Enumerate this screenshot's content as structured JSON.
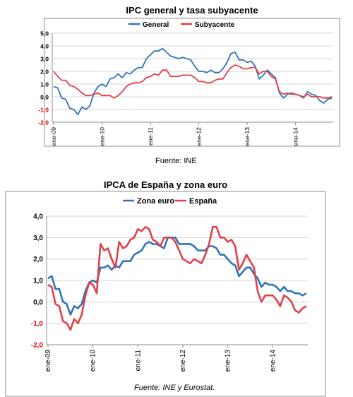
{
  "chart_data": [
    {
      "type": "line",
      "title": "IPC general y tasa subyacente",
      "xlabel": "",
      "ylabel": "",
      "ylim": [
        -2.0,
        5.0
      ],
      "yticks": [
        "5,0",
        "4,0",
        "3,0",
        "2,0",
        "1,0",
        "0,0",
        "-1,0",
        "-2,0"
      ],
      "xticks": [
        "ene-09",
        "ene-10",
        "ene-11",
        "ene-12",
        "ene-13",
        "ene-14"
      ],
      "grid": true,
      "legend": "top",
      "series": [
        {
          "name": "General",
          "color": "#2e75b6",
          "values": [
            0.8,
            0.7,
            -0.1,
            -0.2,
            -0.9,
            -1.0,
            -1.4,
            -0.8,
            -1.0,
            -0.7,
            0.3,
            0.8,
            1.0,
            0.8,
            1.4,
            1.5,
            1.8,
            1.5,
            1.9,
            1.8,
            2.1,
            2.3,
            2.3,
            3.0,
            3.3,
            3.6,
            3.6,
            3.8,
            3.5,
            3.2,
            3.1,
            3.0,
            3.1,
            3.0,
            2.9,
            2.4,
            2.0,
            2.0,
            1.9,
            2.1,
            1.9,
            1.9,
            2.2,
            2.7,
            3.4,
            3.5,
            2.9,
            2.9,
            2.7,
            2.8,
            2.4,
            1.4,
            1.7,
            2.1,
            1.8,
            1.5,
            0.3,
            -0.1,
            0.2,
            0.3,
            0.2,
            0.1,
            -0.1,
            0.4,
            0.2,
            0.1,
            -0.3,
            -0.5,
            -0.2,
            -0.1
          ]
        },
        {
          "name": "Subyacente",
          "color": "#e0404a",
          "values": [
            2.0,
            1.6,
            1.3,
            1.3,
            0.9,
            0.8,
            0.6,
            0.3,
            0.1,
            0.1,
            0.2,
            0.3,
            0.1,
            0.1,
            0.1,
            -0.1,
            0.1,
            0.4,
            0.8,
            1.0,
            1.1,
            1.1,
            1.2,
            1.5,
            1.6,
            1.8,
            1.7,
            2.1,
            2.1,
            1.6,
            1.6,
            1.6,
            1.7,
            1.7,
            1.7,
            1.5,
            1.2,
            1.2,
            1.1,
            1.1,
            1.3,
            1.4,
            1.4,
            1.9,
            2.3,
            2.5,
            2.4,
            2.2,
            2.2,
            2.3,
            2.3,
            1.8,
            2.0,
            2.0,
            1.6,
            1.4,
            0.4,
            0.2,
            0.3,
            0.2,
            0.2,
            0.1,
            0.0,
            0.2,
            0.0,
            0.0,
            0.0,
            -0.1,
            -0.1,
            0.0
          ]
        }
      ],
      "note": "Fuente: INE"
    },
    {
      "type": "line",
      "title": "IPCA de España y zona euro",
      "xlabel": "",
      "ylabel": "",
      "ylim": [
        -2.0,
        4.0
      ],
      "yticks": [
        "4,0",
        "3,0",
        "2,0",
        "1,0",
        "0,0",
        "-1,0",
        "-2,0"
      ],
      "xticks": [
        "ene-09",
        "ene-10",
        "ene-11",
        "ene-12",
        "ene-13",
        "ene-14"
      ],
      "grid": true,
      "legend": "top",
      "series": [
        {
          "name": "Zona euro",
          "color": "#2e75b6",
          "values": [
            1.1,
            1.2,
            0.6,
            0.6,
            0.0,
            -0.1,
            -0.6,
            -0.2,
            -0.3,
            -0.1,
            0.5,
            0.9,
            1.0,
            0.9,
            1.6,
            1.6,
            1.7,
            1.5,
            1.7,
            1.6,
            1.9,
            1.9,
            1.9,
            2.2,
            2.3,
            2.4,
            2.7,
            2.8,
            2.7,
            2.7,
            2.6,
            2.5,
            3.0,
            3.0,
            3.0,
            2.7,
            2.7,
            2.7,
            2.7,
            2.6,
            2.4,
            2.4,
            2.4,
            2.6,
            2.6,
            2.5,
            2.2,
            2.2,
            2.0,
            1.8,
            1.7,
            1.2,
            1.4,
            1.6,
            1.6,
            1.3,
            1.1,
            0.7,
            0.9,
            0.8,
            0.8,
            0.7,
            0.5,
            0.7,
            0.5,
            0.5,
            0.4,
            0.4,
            0.3,
            0.4
          ]
        },
        {
          "name": "España",
          "color": "#e0404a",
          "values": [
            0.8,
            0.7,
            -0.1,
            -0.2,
            -0.9,
            -1.0,
            -1.3,
            -0.8,
            -1.0,
            -0.6,
            0.3,
            0.9,
            0.8,
            0.4,
            2.7,
            2.4,
            2.5,
            2.0,
            1.6,
            2.8,
            2.5,
            2.6,
            2.9,
            3.0,
            3.4,
            3.3,
            3.5,
            3.4,
            2.9,
            2.8,
            2.6,
            3.0,
            3.0,
            3.0,
            2.8,
            2.4,
            2.0,
            1.9,
            1.8,
            2.0,
            1.9,
            1.8,
            2.2,
            2.7,
            3.5,
            3.5,
            3.0,
            3.0,
            2.8,
            2.9,
            2.6,
            1.5,
            1.8,
            2.2,
            1.9,
            1.6,
            0.5,
            0.0,
            0.3,
            0.3,
            0.3,
            0.1,
            -0.2,
            0.3,
            0.2,
            0.0,
            -0.4,
            -0.5,
            -0.3,
            -0.2
          ]
        }
      ],
      "note": "Fuente: INE y Eurostat."
    }
  ]
}
